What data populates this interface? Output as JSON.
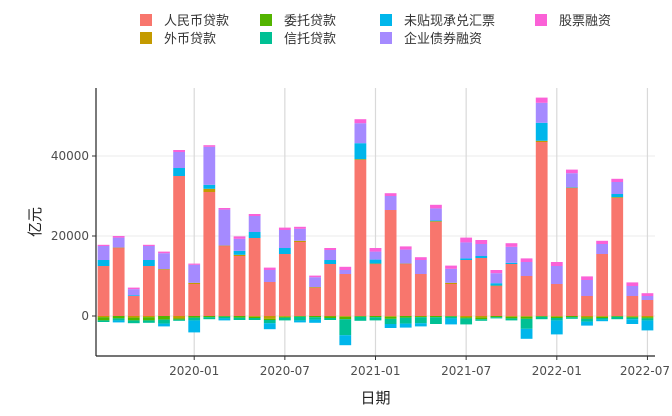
{
  "chart_data": {
    "type": "bar",
    "stacked": true,
    "xlabel": "日期",
    "ylabel": "亿元",
    "ylim": [
      -10000,
      57000
    ],
    "yticks": [
      0,
      20000,
      40000
    ],
    "ytick_labels": [
      "0",
      "20000",
      "40000"
    ],
    "xticks": [
      "2020-01",
      "2020-07",
      "2021-01",
      "2021-07",
      "2022-01",
      "2022-07"
    ],
    "xtick_labels": [
      "2020-01",
      "2020-07",
      "2021-01",
      "2021-07",
      "2022-01",
      "2022-07"
    ],
    "grid": true,
    "legend_position": "top",
    "categories": [
      "2019-07",
      "2019-08",
      "2019-09",
      "2019-10",
      "2019-11",
      "2019-12",
      "2020-01",
      "2020-02",
      "2020-03",
      "2020-04",
      "2020-05",
      "2020-06",
      "2020-07",
      "2020-08",
      "2020-09",
      "2020-10",
      "2020-11",
      "2020-12",
      "2021-01",
      "2021-02",
      "2021-03",
      "2021-04",
      "2021-05",
      "2021-06",
      "2021-07",
      "2021-08",
      "2021-09",
      "2021-10",
      "2021-11",
      "2021-12",
      "2022-01",
      "2022-02",
      "2022-03",
      "2022-04",
      "2022-05",
      "2022-06",
      "2022-07"
    ],
    "series": [
      {
        "name": "人民币贷款",
        "color": "#F8766D",
        "values": [
          12500,
          17000,
          5000,
          12500,
          11500,
          35000,
          8000,
          31000,
          17500,
          15000,
          19500,
          8500,
          15500,
          18500,
          7000,
          13000,
          10500,
          39000,
          13000,
          26500,
          13000,
          10500,
          23500,
          8000,
          14000,
          14500,
          7500,
          13000,
          10000,
          43500,
          8000,
          32000,
          5000,
          15500,
          29500,
          5000,
          4000
        ]
      },
      {
        "name": "外币贷款",
        "color": "#C49A00",
        "values": [
          -300,
          100,
          -400,
          -300,
          200,
          -600,
          300,
          800,
          100,
          300,
          -200,
          -700,
          -200,
          300,
          200,
          -100,
          -200,
          200,
          100,
          -200,
          100,
          -100,
          200,
          300,
          -300,
          -400,
          100,
          -200,
          -200,
          300,
          -200,
          100,
          -300,
          -200,
          200,
          -200,
          -300
        ]
      },
      {
        "name": "委托贷款",
        "color": "#53B400",
        "values": [
          -800,
          -600,
          -700,
          -800,
          -900,
          -300,
          -400,
          -300,
          -200,
          -400,
          -300,
          -300,
          -200,
          -200,
          -300,
          -400,
          -600,
          -200,
          -300,
          -500,
          -400,
          -200,
          -300,
          -200,
          -300,
          -400,
          -300,
          -400,
          -500,
          -200,
          -300,
          -300,
          -400,
          -300,
          -200,
          -200,
          -300
        ]
      },
      {
        "name": "信托贷款",
        "color": "#00C094",
        "values": [
          -400,
          -500,
          -700,
          -600,
          -1000,
          -300,
          -700,
          -500,
          -400,
          -600,
          -500,
          -800,
          -700,
          -900,
          -600,
          -500,
          -4000,
          -1000,
          -800,
          -1300,
          -1500,
          -1500,
          -1700,
          -400,
          -1500,
          -400,
          -300,
          -500,
          -2500,
          -600,
          -600,
          -400,
          -700,
          -400,
          -600,
          -400,
          -500
        ]
      },
      {
        "name": "未贴现承兑汇票",
        "color": "#00B6EB",
        "values": [
          1500,
          -500,
          200,
          1500,
          -700,
          2000,
          -3000,
          1000,
          -500,
          1000,
          1500,
          -1500,
          1500,
          -500,
          -800,
          1000,
          -2500,
          4000,
          1000,
          -1000,
          -1000,
          -800,
          200,
          -1500,
          400,
          500,
          600,
          300,
          -2500,
          4500,
          -3500,
          100,
          -1000,
          -400,
          800,
          -1200,
          -2500
        ]
      },
      {
        "name": "企业债券融资",
        "color": "#A58AFF",
        "values": [
          3500,
          2500,
          1500,
          3500,
          4000,
          4000,
          4500,
          9500,
          9000,
          3000,
          4000,
          3000,
          4500,
          3000,
          2500,
          2500,
          1000,
          5000,
          2000,
          3500,
          3500,
          3500,
          3000,
          3500,
          4000,
          3000,
          2500,
          4000,
          3500,
          5000,
          4500,
          3500,
          4000,
          2500,
          3000,
          2500,
          1000
        ]
      },
      {
        "name": "股票融资",
        "color": "#FB61D7",
        "values": [
          300,
          400,
          400,
          300,
          400,
          500,
          300,
          400,
          400,
          600,
          500,
          600,
          600,
          500,
          400,
          500,
          800,
          1000,
          900,
          700,
          800,
          700,
          900,
          800,
          1200,
          1000,
          800,
          900,
          900,
          1300,
          1000,
          900,
          900,
          800,
          800,
          900,
          700
        ]
      }
    ]
  }
}
